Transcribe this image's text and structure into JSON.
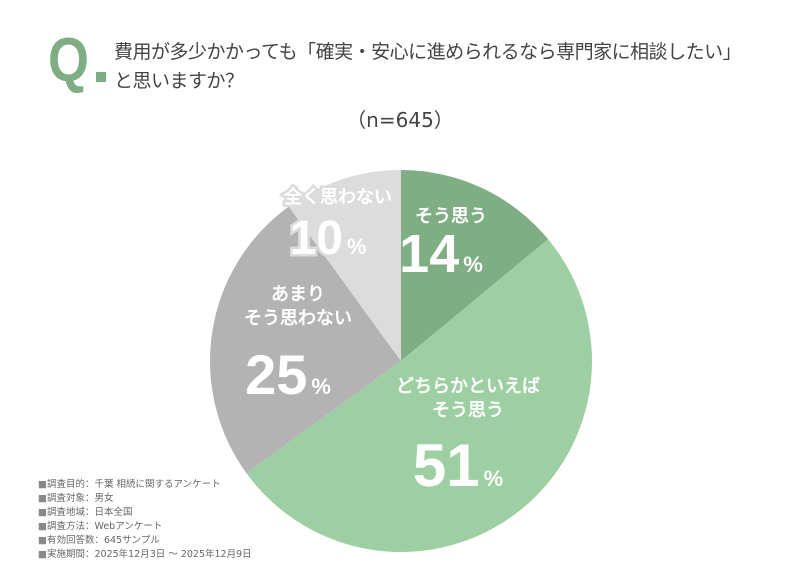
{
  "question": {
    "mark": "Q",
    "line1": "費用が多少かかっても「確実・安心に進められるなら専門家に相談したい」",
    "line2": "と思いますか？"
  },
  "sample_size": "（n=645）",
  "chart_data": {
    "type": "pie",
    "start": "top",
    "direction": "clockwise",
    "slices": [
      {
        "label": [
          "そう思う"
        ],
        "value": 14,
        "display": "14",
        "unit": "%",
        "color": "#7fae84"
      },
      {
        "label": [
          "どちらかといえば",
          "そう思う"
        ],
        "value": 51,
        "display": "51",
        "unit": "%",
        "color": "#9ecfa2"
      },
      {
        "label": [
          "あまり",
          "そう思わない"
        ],
        "value": 25,
        "display": "25",
        "unit": "%",
        "color": "#b3b3b3"
      },
      {
        "label": [
          "全く思わない"
        ],
        "value": 10,
        "display": "10",
        "unit": "%",
        "color": "#dcdcdc"
      }
    ]
  },
  "notes": [
    "調査目的：千葉 相続に関するアンケート",
    "調査対象：男女",
    "調査地域：日本全国",
    "調査方法：Webアンケート",
    "有効回答数：645サンプル",
    "実施期間：2025年12月3日 〜 2025年12月9日"
  ]
}
